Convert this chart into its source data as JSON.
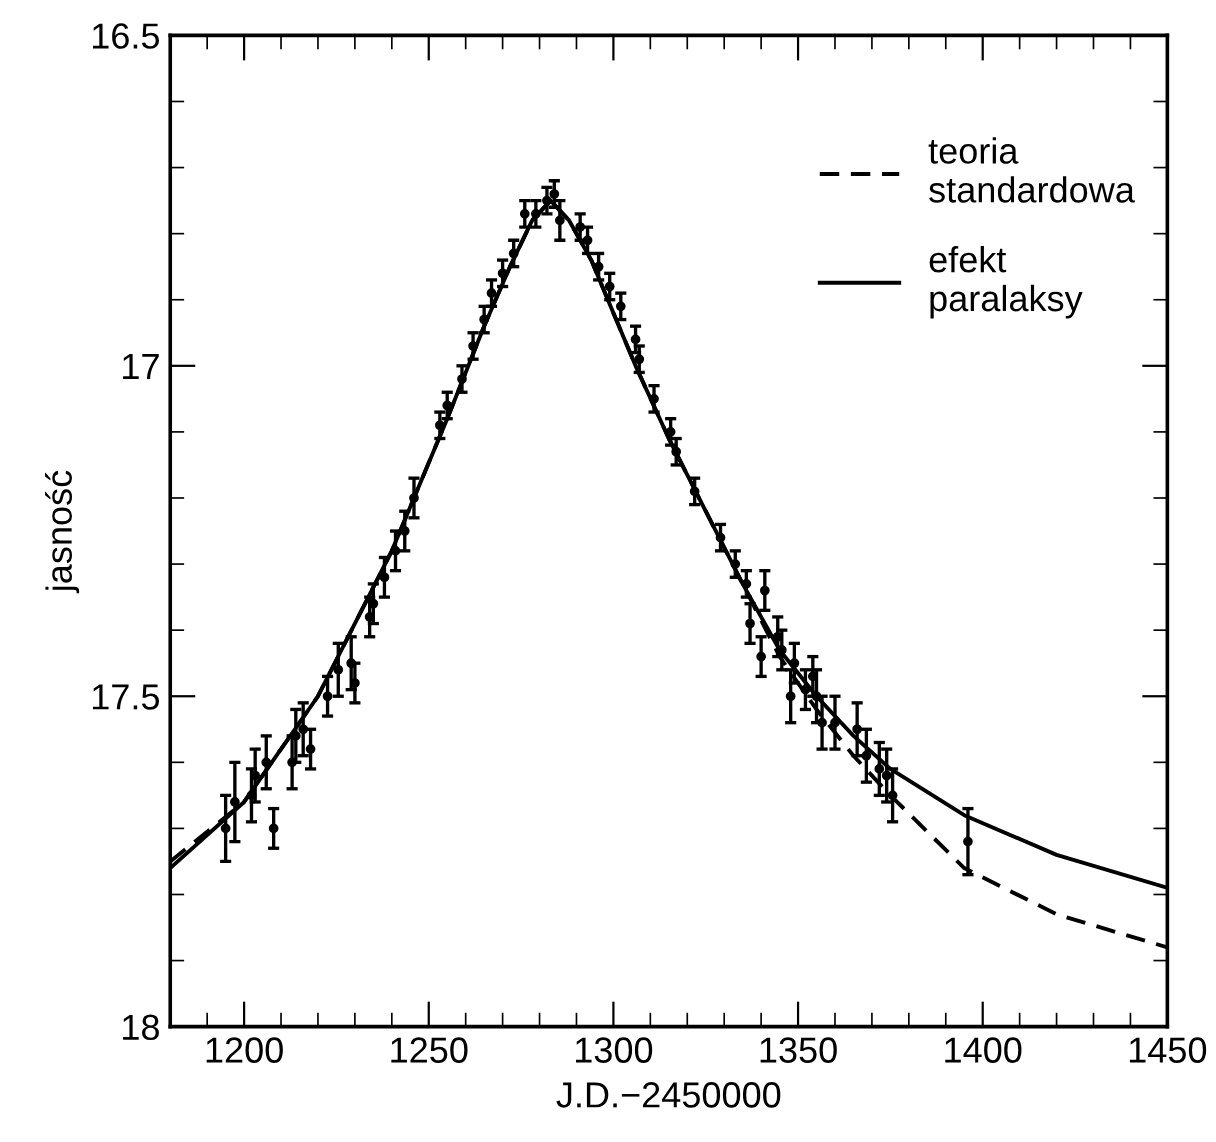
{
  "chart_data": {
    "type": "line",
    "xlabel": "J.D.−2450000",
    "ylabel": "jasność",
    "xlim": [
      1180,
      1450
    ],
    "ylim": [
      18,
      16.5
    ],
    "xticks": [
      1200,
      1250,
      1300,
      1350,
      1400,
      1450
    ],
    "yticks": [
      {
        "value": 16.5,
        "label": "16.5"
      },
      {
        "value": 17,
        "label": "17"
      },
      {
        "value": 17.5,
        "label": "17.5"
      },
      {
        "value": 18,
        "label": "18"
      }
    ],
    "legend": "top right",
    "grid": false,
    "series": [
      {
        "type": "scatter",
        "marker": "circle",
        "color": "#000000",
        "x": [
          1195,
          1197.5,
          1202,
          1203,
          1206,
          1208,
          1213,
          1214,
          1216,
          1218,
          1222.6,
          1225.5,
          1229,
          1230,
          1234,
          1235,
          1238,
          1241,
          1243.5,
          1246,
          1253,
          1255,
          1259,
          1262,
          1265,
          1267,
          1270,
          1273,
          1276,
          1279,
          1282,
          1284,
          1285.5,
          1291,
          1293,
          1296,
          1299,
          1302,
          1306,
          1307,
          1311,
          1315.5,
          1317,
          1322,
          1329,
          1333,
          1336,
          1337,
          1340,
          1341,
          1344.5,
          1345.6,
          1348,
          1349,
          1352,
          1354,
          1355,
          1356.5,
          1360,
          1366,
          1368.5,
          1372,
          1374,
          1375.6,
          1396
        ],
        "values": [
          17.7,
          17.66,
          17.65,
          17.62,
          17.6,
          17.7,
          17.6,
          17.56,
          17.55,
          17.58,
          17.5,
          17.46,
          17.45,
          17.48,
          17.38,
          17.36,
          17.32,
          17.28,
          17.25,
          17.2,
          17.09,
          17.06,
          17.02,
          16.97,
          16.93,
          16.89,
          16.86,
          16.83,
          16.77,
          16.77,
          16.75,
          16.74,
          16.78,
          16.79,
          16.81,
          16.85,
          16.88,
          16.91,
          16.96,
          16.99,
          17.05,
          17.1,
          17.13,
          17.19,
          17.26,
          17.3,
          17.33,
          17.39,
          17.44,
          17.34,
          17.41,
          17.43,
          17.5,
          17.45,
          17.49,
          17.47,
          17.5,
          17.54,
          17.54,
          17.55,
          17.59,
          17.61,
          17.62,
          17.65,
          17.72
        ],
        "errors": [
          0.05,
          0.06,
          0.04,
          0.04,
          0.04,
          0.03,
          0.04,
          0.04,
          0.04,
          0.03,
          0.03,
          0.04,
          0.04,
          0.03,
          0.03,
          0.03,
          0.03,
          0.03,
          0.03,
          0.03,
          0.02,
          0.02,
          0.02,
          0.02,
          0.02,
          0.02,
          0.02,
          0.02,
          0.02,
          0.02,
          0.02,
          0.02,
          0.03,
          0.02,
          0.02,
          0.02,
          0.02,
          0.02,
          0.02,
          0.02,
          0.02,
          0.02,
          0.02,
          0.02,
          0.02,
          0.02,
          0.02,
          0.03,
          0.03,
          0.03,
          0.03,
          0.03,
          0.04,
          0.03,
          0.03,
          0.03,
          0.04,
          0.04,
          0.04,
          0.04,
          0.04,
          0.04,
          0.04,
          0.04,
          0.05
        ]
      },
      {
        "name": "teoria\nstandardowa",
        "color": "#000000",
        "line_style": "dashed",
        "x": [
          1180,
          1200,
          1220,
          1240,
          1255,
          1265,
          1272,
          1278,
          1283,
          1288,
          1294,
          1300,
          1306,
          1315,
          1325,
          1335,
          1345,
          1355,
          1365,
          1375,
          1395,
          1420,
          1450
        ],
        "values": [
          17.75,
          17.66,
          17.5,
          17.28,
          17.08,
          16.94,
          16.85,
          16.78,
          16.75,
          16.78,
          16.84,
          16.92,
          17.0,
          17.11,
          17.22,
          17.33,
          17.44,
          17.52,
          17.59,
          17.65,
          17.76,
          17.83,
          17.88
        ]
      },
      {
        "name": "efekt\nparalaksy",
        "color": "#000000",
        "line_style": "solid",
        "x": [
          1180,
          1200,
          1220,
          1240,
          1255,
          1265,
          1272,
          1278,
          1283,
          1288,
          1294,
          1300,
          1306,
          1315,
          1325,
          1335,
          1345,
          1355,
          1365,
          1375,
          1395,
          1420,
          1450
        ],
        "values": [
          17.76,
          17.66,
          17.5,
          17.28,
          17.08,
          16.94,
          16.85,
          16.78,
          16.75,
          16.78,
          16.84,
          16.92,
          17.0,
          17.11,
          17.22,
          17.33,
          17.43,
          17.5,
          17.56,
          17.61,
          17.68,
          17.74,
          17.79
        ]
      }
    ]
  }
}
